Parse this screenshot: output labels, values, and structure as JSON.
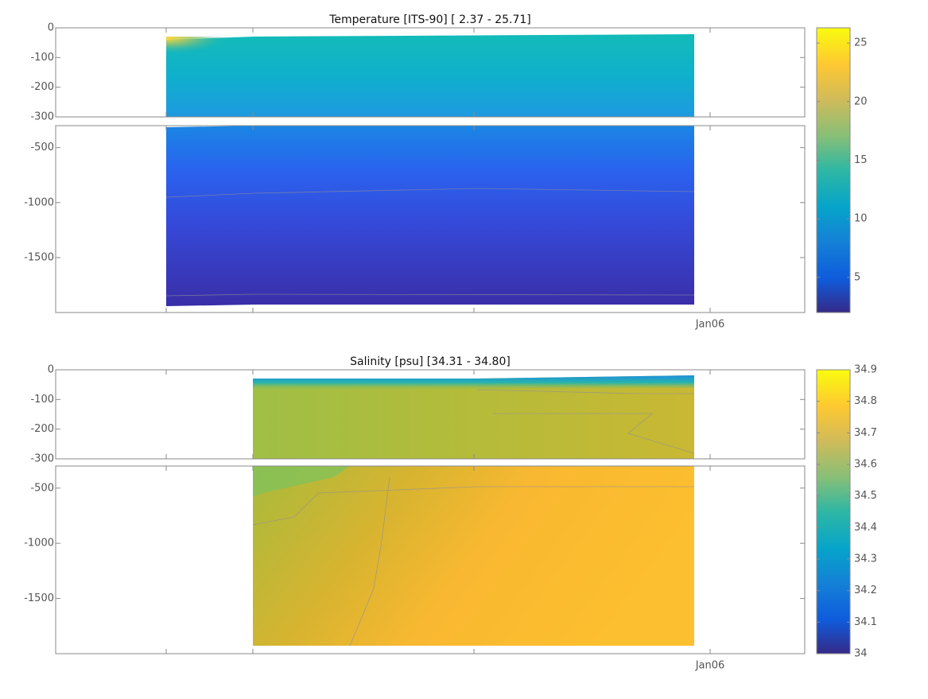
{
  "chart_data": [
    {
      "type": "contour",
      "title": "Temperature [ITS-90]   [ 2.37 - 25.71]",
      "upper_ylim": [
        -300,
        0
      ],
      "upper_yticks": [
        0,
        -100,
        -200,
        -300
      ],
      "lower_ylim": [
        -2000,
        -300
      ],
      "lower_yticks": [
        -500,
        -1000,
        -1500
      ],
      "xtick_labels": [
        null,
        null,
        null,
        "Jan06"
      ],
      "clim": [
        2,
        26.3
      ],
      "cticks": [
        5,
        10,
        15,
        20,
        25
      ]
    },
    {
      "type": "contour",
      "title": "Salinity [psu]   [34.31 - 34.80]",
      "upper_ylim": [
        -300,
        0
      ],
      "upper_yticks": [
        0,
        -100,
        -200,
        -300
      ],
      "lower_ylim": [
        -2000,
        -300
      ],
      "lower_yticks": [
        -500,
        -1000,
        -1500
      ],
      "xtick_labels": [
        null,
        null,
        null,
        "Jan06"
      ],
      "clim": [
        34,
        34.9
      ],
      "cticks": [
        34,
        34.1,
        34.2,
        34.3,
        34.4,
        34.5,
        34.6,
        34.7,
        34.8,
        34.9
      ]
    }
  ]
}
